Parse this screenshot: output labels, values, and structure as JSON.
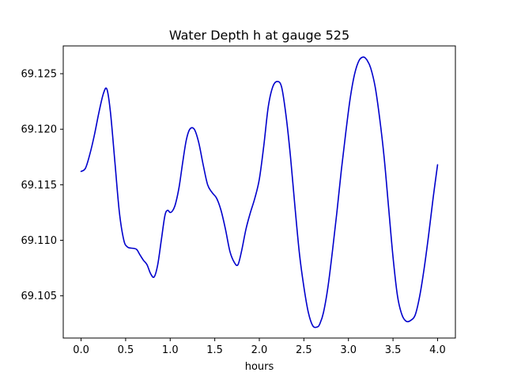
{
  "chart_data": {
    "type": "line",
    "title": "Water Depth h at gauge 525",
    "xlabel": "hours",
    "ylabel": "",
    "xlim": [
      -0.2,
      4.2
    ],
    "ylim": [
      69.1012,
      69.1275
    ],
    "xticks": [
      0.0,
      0.5,
      1.0,
      1.5,
      2.0,
      2.5,
      3.0,
      3.5,
      4.0
    ],
    "xtick_labels": [
      "0.0",
      "0.5",
      "1.0",
      "1.5",
      "2.0",
      "2.5",
      "3.0",
      "3.5",
      "4.0"
    ],
    "yticks": [
      69.105,
      69.11,
      69.115,
      69.12,
      69.125
    ],
    "ytick_labels": [
      "69.105",
      "69.110",
      "69.115",
      "69.120",
      "69.125"
    ],
    "grid": false,
    "series": [
      {
        "color": "#0000cc",
        "x": [
          0.0,
          0.05,
          0.1,
          0.15,
          0.2,
          0.25,
          0.29,
          0.33,
          0.38,
          0.43,
          0.48,
          0.52,
          0.56,
          0.62,
          0.66,
          0.7,
          0.74,
          0.78,
          0.82,
          0.86,
          0.9,
          0.94,
          0.97,
          1.0,
          1.03,
          1.06,
          1.1,
          1.14,
          1.18,
          1.22,
          1.27,
          1.32,
          1.37,
          1.42,
          1.47,
          1.52,
          1.57,
          1.62,
          1.67,
          1.72,
          1.76,
          1.8,
          1.85,
          1.9,
          1.95,
          2.0,
          2.05,
          2.1,
          2.15,
          2.2,
          2.25,
          2.3,
          2.35,
          2.4,
          2.45,
          2.5,
          2.55,
          2.6,
          2.65,
          2.68,
          2.72,
          2.77,
          2.82,
          2.87,
          2.92,
          2.97,
          3.02,
          3.07,
          3.12,
          3.17,
          3.21,
          3.25,
          3.3,
          3.35,
          3.4,
          3.45,
          3.5,
          3.55,
          3.6,
          3.65,
          3.7,
          3.75,
          3.8,
          3.85,
          3.9,
          3.95,
          4.0
        ],
        "y": [
          69.1162,
          69.1165,
          69.1178,
          69.1195,
          69.1215,
          69.1232,
          69.1236,
          69.1215,
          69.117,
          69.1125,
          69.11,
          69.1094,
          69.1093,
          69.1092,
          69.1087,
          69.1082,
          69.1078,
          69.107,
          69.1067,
          69.1078,
          69.11,
          69.1122,
          69.1127,
          69.1125,
          69.1127,
          69.1133,
          69.1148,
          69.117,
          69.119,
          69.12,
          69.12,
          69.1188,
          69.1168,
          69.115,
          69.1143,
          69.1138,
          69.1127,
          69.111,
          69.109,
          69.108,
          69.1078,
          69.109,
          69.111,
          69.1125,
          69.1138,
          69.1155,
          69.1185,
          69.122,
          69.1238,
          69.1243,
          69.1238,
          69.1212,
          69.1175,
          69.113,
          69.1088,
          69.1058,
          69.1035,
          69.1023,
          69.1022,
          69.1025,
          69.1035,
          69.1058,
          69.109,
          69.1125,
          69.1163,
          69.1197,
          69.1228,
          69.125,
          69.1262,
          69.1265,
          69.1262,
          69.1255,
          69.1238,
          69.121,
          69.1175,
          69.113,
          69.1085,
          69.105,
          69.1033,
          69.1027,
          69.1028,
          69.1033,
          69.105,
          69.1075,
          69.1105,
          69.1138,
          69.1168
        ]
      }
    ]
  }
}
